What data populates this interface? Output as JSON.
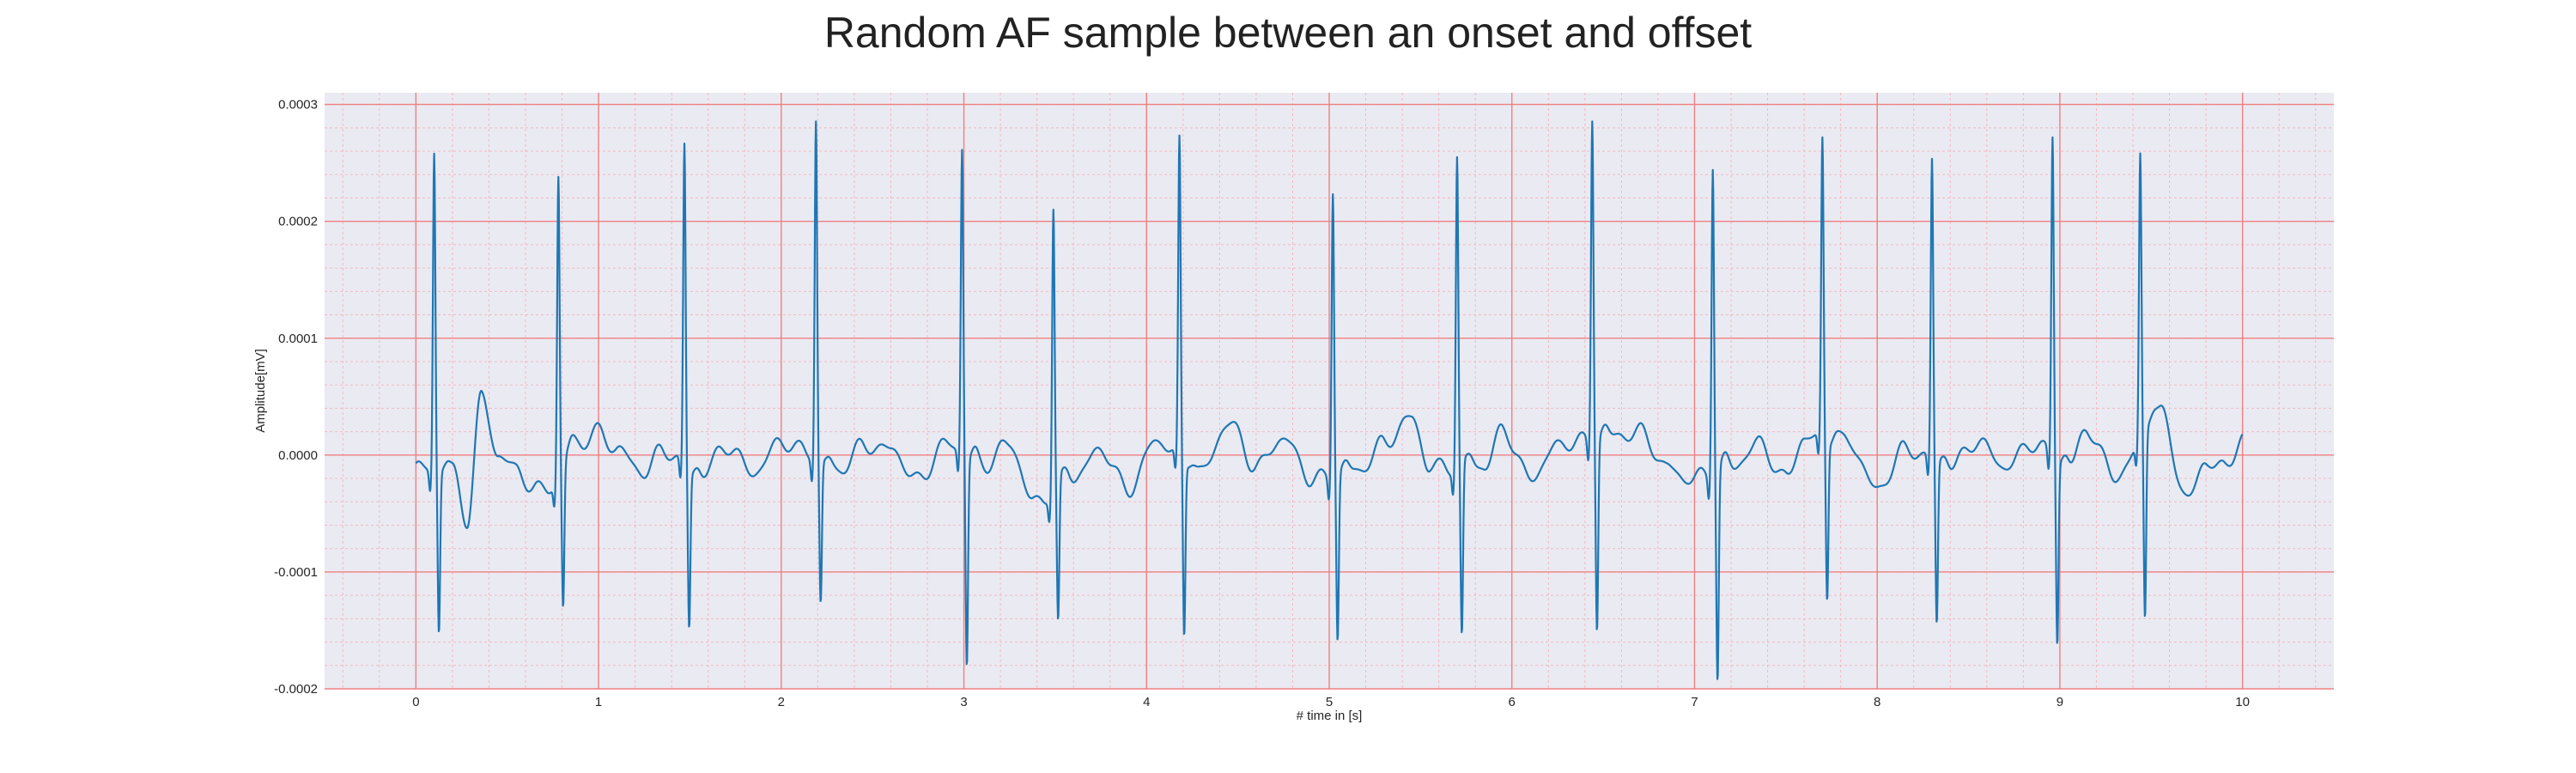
{
  "chart_data": {
    "type": "line",
    "title": "Random AF sample between an onset and offset",
    "xlabel": "# time in [s]",
    "ylabel": "Amplitude[mV]",
    "xlim": [
      -0.5,
      10.5
    ],
    "ylim": [
      -0.0002,
      0.00031
    ],
    "x_ticks": [
      0,
      1,
      2,
      3,
      4,
      5,
      6,
      7,
      8,
      9,
      10
    ],
    "x_tick_labels": [
      "0",
      "1",
      "2",
      "3",
      "4",
      "5",
      "6",
      "7",
      "8",
      "9",
      "10"
    ],
    "y_ticks": [
      -0.0002,
      -0.0001,
      0.0,
      0.0001,
      0.0002,
      0.0003
    ],
    "y_tick_labels": [
      "-0.0002",
      "-0.0001",
      "0.0000",
      "0.0001",
      "0.0002",
      "0.0003"
    ],
    "grid": true,
    "minor_grid": true,
    "colors": {
      "line": "#1f77b4",
      "background": "#eaeaf2",
      "major_grid": "#f08080",
      "minor_grid": "#f4b8c0"
    },
    "series": [
      {
        "beats": [
          {
            "t": 0.1,
            "r": 0.000272,
            "s": -0.000138
          },
          {
            "t": 0.78,
            "r": 0.000256,
            "s": -0.000122
          },
          {
            "t": 1.47,
            "r": 0.000275,
            "s": -0.000133
          },
          {
            "t": 2.19,
            "r": 0.000291,
            "s": -0.000121
          },
          {
            "t": 2.99,
            "r": 0.000262,
            "s": -0.000177
          },
          {
            "t": 3.49,
            "r": 0.000241,
            "s": -0.000122
          },
          {
            "t": 4.18,
            "r": 0.000269,
            "s": -0.00015
          },
          {
            "t": 5.02,
            "r": 0.000246,
            "s": -0.000141
          },
          {
            "t": 5.7,
            "r": 0.000266,
            "s": -0.000149
          },
          {
            "t": 6.44,
            "r": 0.000277,
            "s": -0.000162
          },
          {
            "t": 7.1,
            "r": 0.000266,
            "s": -0.000179
          },
          {
            "t": 7.7,
            "r": 0.000256,
            "s": -0.000134
          },
          {
            "t": 8.3,
            "r": 0.000257,
            "s": -0.000139
          },
          {
            "t": 8.96,
            "r": 0.000275,
            "s": -0.000155
          },
          {
            "t": 9.44,
            "r": 0.000242,
            "s": -0.000161
          }
        ],
        "baseline": [
          [
            0.0,
            -1e-05
          ],
          [
            0.05,
            -1.2e-05
          ],
          [
            0.2,
            -1.5e-05
          ],
          [
            0.28,
            -5.5e-05
          ],
          [
            0.36,
            5e-05
          ],
          [
            0.45,
            0.0
          ],
          [
            0.55,
            -1.2e-05
          ],
          [
            0.65,
            -3e-05
          ],
          [
            0.72,
            -2.8e-05
          ],
          [
            0.9,
            1e-05
          ],
          [
            1.0,
            2e-05
          ],
          [
            1.1,
            5e-06
          ],
          [
            1.25,
            -1.5e-05
          ],
          [
            1.35,
            5e-06
          ],
          [
            1.55,
            -2e-05
          ],
          [
            1.7,
            8e-06
          ],
          [
            1.85,
            -1.5e-05
          ],
          [
            2.0,
            1.2e-05
          ],
          [
            2.1,
            5e-06
          ],
          [
            2.3,
            -1.5e-05
          ],
          [
            2.45,
            8e-06
          ],
          [
            2.6,
            5e-06
          ],
          [
            2.75,
            -2.2e-05
          ],
          [
            2.9,
            1e-05
          ],
          [
            3.1,
            -1e-05
          ],
          [
            3.25,
            1e-05
          ],
          [
            3.38,
            -4e-05
          ],
          [
            3.6,
            -2e-05
          ],
          [
            3.75,
            5e-06
          ],
          [
            3.9,
            -3e-05
          ],
          [
            4.05,
            1.2e-05
          ],
          [
            4.3,
            -1.5e-05
          ],
          [
            4.45,
            2.8e-05
          ],
          [
            4.6,
            -1e-05
          ],
          [
            4.75,
            1.5e-05
          ],
          [
            4.9,
            -2e-05
          ],
          [
            5.15,
            -1.5e-05
          ],
          [
            5.3,
            1e-05
          ],
          [
            5.45,
            3.2e-05
          ],
          [
            5.55,
            -1e-05
          ],
          [
            5.85,
            -1e-05
          ],
          [
            5.95,
            2.2e-05
          ],
          [
            6.1,
            -2e-05
          ],
          [
            6.25,
            8e-06
          ],
          [
            6.35,
            1.2e-05
          ],
          [
            6.55,
            1.5e-05
          ],
          [
            6.7,
            2e-05
          ],
          [
            6.85,
            -1e-05
          ],
          [
            6.95,
            -2e-05
          ],
          [
            7.2,
            -1.2e-05
          ],
          [
            7.35,
            1e-05
          ],
          [
            7.5,
            -2e-05
          ],
          [
            7.6,
            1.5e-05
          ],
          [
            7.85,
            1e-05
          ],
          [
            8.0,
            -3e-05
          ],
          [
            8.15,
            5e-06
          ],
          [
            8.4,
            -1e-05
          ],
          [
            8.55,
            1.2e-05
          ],
          [
            8.7,
            -1e-05
          ],
          [
            8.85,
            1e-05
          ],
          [
            9.05,
            -1e-05
          ],
          [
            9.15,
            2.2e-05
          ],
          [
            9.3,
            -1.8e-05
          ],
          [
            9.55,
            3.5e-05
          ],
          [
            9.7,
            -3.8e-05
          ],
          [
            9.8,
            -5e-06
          ],
          [
            9.9,
            -1.2e-05
          ],
          [
            10.0,
            1.5e-05
          ]
        ]
      }
    ]
  }
}
